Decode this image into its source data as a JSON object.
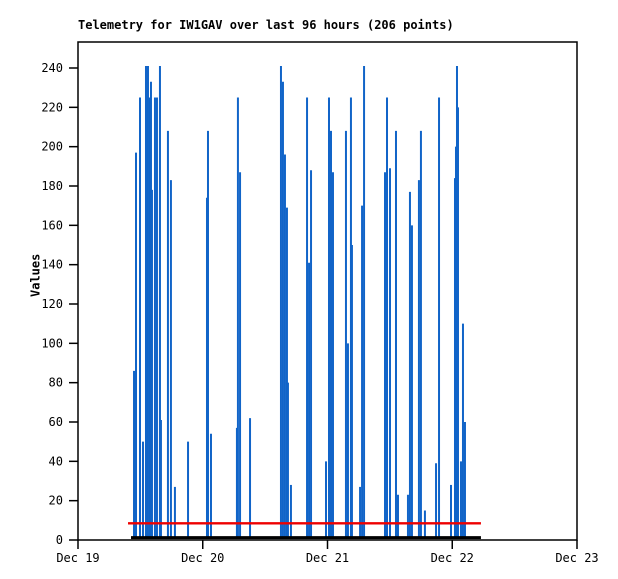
{
  "chart_data": {
    "type": "bar",
    "subtype": "impulse",
    "title": "Telemetry for IW1GAV over last 96 hours (206 points)",
    "xlabel": "",
    "ylabel": "Values",
    "points_count_label": "206 points",
    "grid": false,
    "legend": "none",
    "ylim": [
      0,
      253
    ],
    "y_ticks": [
      0,
      20,
      40,
      60,
      80,
      100,
      120,
      140,
      160,
      180,
      200,
      220,
      240
    ],
    "x_ticks": [
      {
        "t": 0,
        "label": "Dec 19"
      },
      {
        "t": 1,
        "label": "Dec 20"
      },
      {
        "t": 2,
        "label": "Dec 21"
      },
      {
        "t": 3,
        "label": "Dec 22"
      },
      {
        "t": 4,
        "label": "Dec 23"
      }
    ],
    "xlim_days": [
      0,
      4
    ],
    "colors": {
      "impulse": "#1164c8",
      "threshold": "#ee0000",
      "baseline": "#000000",
      "frame": "#000000",
      "background": "#ffffff"
    },
    "series": [
      {
        "name": "telemetry-values",
        "style": "impulses",
        "color": "#1164c8",
        "points": [
          [
            0.449,
            86
          ],
          [
            0.465,
            197
          ],
          [
            0.497,
            225
          ],
          [
            0.521,
            50
          ],
          [
            0.545,
            241
          ],
          [
            0.561,
            241
          ],
          [
            0.577,
            225
          ],
          [
            0.585,
            233
          ],
          [
            0.593,
            178
          ],
          [
            0.617,
            225
          ],
          [
            0.633,
            225
          ],
          [
            0.657,
            241
          ],
          [
            0.665,
            61
          ],
          [
            0.721,
            208
          ],
          [
            0.745,
            183
          ],
          [
            0.777,
            27
          ],
          [
            0.882,
            50
          ],
          [
            1.034,
            174
          ],
          [
            1.042,
            208
          ],
          [
            1.066,
            54
          ],
          [
            1.274,
            57
          ],
          [
            1.282,
            225
          ],
          [
            1.299,
            187
          ],
          [
            1.379,
            62
          ],
          [
            1.627,
            241
          ],
          [
            1.643,
            233
          ],
          [
            1.659,
            196
          ],
          [
            1.675,
            169
          ],
          [
            1.683,
            80
          ],
          [
            1.707,
            28
          ],
          [
            1.836,
            225
          ],
          [
            1.852,
            141
          ],
          [
            1.868,
            188
          ],
          [
            1.988,
            40
          ],
          [
            2.012,
            225
          ],
          [
            2.028,
            208
          ],
          [
            2.044,
            187
          ],
          [
            2.148,
            208
          ],
          [
            2.164,
            100
          ],
          [
            2.188,
            225
          ],
          [
            2.196,
            150
          ],
          [
            2.261,
            27
          ],
          [
            2.277,
            170
          ],
          [
            2.293,
            241
          ],
          [
            2.461,
            187
          ],
          [
            2.477,
            225
          ],
          [
            2.501,
            189
          ],
          [
            2.549,
            208
          ],
          [
            2.565,
            23
          ],
          [
            2.645,
            23
          ],
          [
            2.661,
            177
          ],
          [
            2.677,
            160
          ],
          [
            2.733,
            183
          ],
          [
            2.749,
            208
          ],
          [
            2.781,
            15
          ],
          [
            2.87,
            39
          ],
          [
            2.894,
            225
          ],
          [
            2.99,
            28
          ],
          [
            3.022,
            184
          ],
          [
            3.03,
            200
          ],
          [
            3.038,
            241
          ],
          [
            3.046,
            220
          ],
          [
            3.07,
            40
          ],
          [
            3.086,
            110
          ],
          [
            3.102,
            60
          ]
        ]
      },
      {
        "name": "threshold-line",
        "style": "hline",
        "color": "#ee0000",
        "value": 8.5,
        "t_start": 0.401,
        "t_end": 3.23,
        "stroke_width": 2.4
      },
      {
        "name": "zero-baseline",
        "style": "hline",
        "color": "#000000",
        "value": 1.2,
        "t_start": 0.425,
        "t_end": 3.23,
        "stroke_width": 3
      }
    ]
  }
}
